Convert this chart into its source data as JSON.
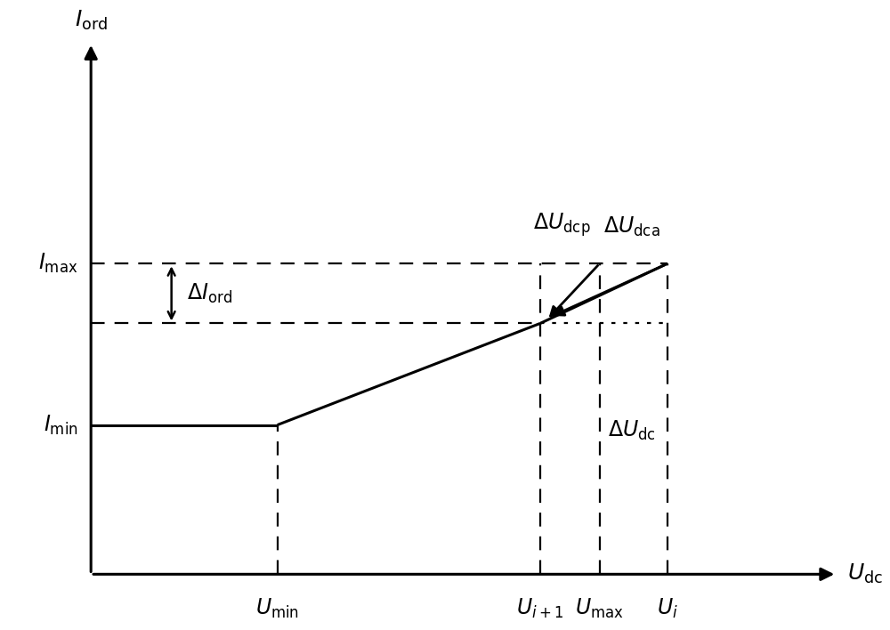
{
  "figsize": [
    10.0,
    7.08
  ],
  "dpi": 100,
  "bg_color": "#ffffff",
  "line_color": "#000000",
  "x_min": 0.0,
  "x_max": 10.0,
  "y_min": 0.0,
  "y_max": 10.0,
  "ax_orig_x": 1.0,
  "ax_orig_y": 0.7,
  "ax_end_x": 9.8,
  "ax_end_y": 9.6,
  "U_min": 3.2,
  "U_i1": 6.3,
  "U_max": 7.0,
  "U_i": 7.8,
  "I_min": 3.2,
  "I_ord": 4.9,
  "I_max": 5.9,
  "lw_main": 2.2,
  "lw_dash": 1.6,
  "lw_arrow": 2.0,
  "fs_label": 17,
  "fs_axis_label": 18,
  "xlabel": "$U_{\\mathrm{dc}}$",
  "ylabel": "$I_{\\mathrm{ord}}$",
  "label_Imin": "$I_{\\mathrm{min}}$",
  "label_Imax": "$I_{\\mathrm{max}}$",
  "label_Umin": "$U_{\\mathrm{min}}$",
  "label_Ui1": "$U_{i+1}$",
  "label_Umax": "$U_{\\mathrm{max}}$",
  "label_Ui": "$U_i$",
  "label_delta_I": "$\\Delta I_{\\mathrm{ord}}$",
  "label_delta_Udc": "$\\Delta U_{\\mathrm{dc}}$",
  "label_delta_Udcp": "$\\Delta U_{\\mathrm{dcp}}$",
  "label_delta_Udca": "$\\Delta U_{\\mathrm{dca}}$"
}
